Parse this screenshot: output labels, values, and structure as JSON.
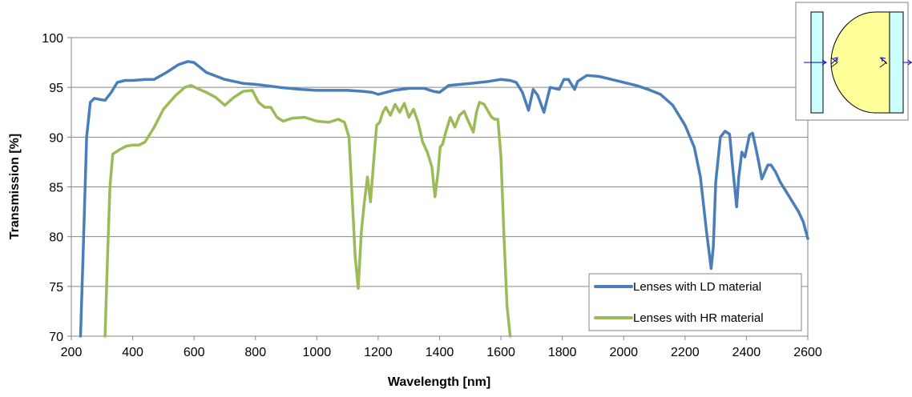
{
  "chart_data": {
    "type": "line",
    "xlabel": "Wavelength [nm]",
    "ylabel": "Transmission [%]",
    "xlim": [
      200,
      2600
    ],
    "ylim": [
      70,
      100
    ],
    "xticks": [
      200,
      400,
      600,
      800,
      1000,
      1200,
      1400,
      1600,
      1800,
      2000,
      2200,
      2400,
      2600
    ],
    "yticks": [
      70,
      75,
      80,
      85,
      90,
      95,
      100
    ],
    "grid": "horizontal",
    "legend_position": "bottom-right",
    "series": [
      {
        "name": "Lenses with LD material",
        "color": "#4a7ebb",
        "x": [
          230,
          238,
          250,
          262,
          275,
          290,
          310,
          330,
          350,
          375,
          400,
          440,
          470,
          510,
          550,
          580,
          600,
          640,
          700,
          760,
          800,
          830,
          880,
          950,
          1000,
          1050,
          1100,
          1150,
          1180,
          1200,
          1250,
          1300,
          1350,
          1380,
          1400,
          1430,
          1500,
          1560,
          1600,
          1630,
          1650,
          1670,
          1690,
          1705,
          1720,
          1740,
          1760,
          1790,
          1805,
          1820,
          1840,
          1850,
          1880,
          1920,
          1960,
          2000,
          2040,
          2080,
          2120,
          2160,
          2200,
          2230,
          2250,
          2270,
          2285,
          2292,
          2300,
          2315,
          2330,
          2345,
          2355,
          2368,
          2375,
          2385,
          2395,
          2410,
          2420,
          2430,
          2440,
          2450,
          2460,
          2470,
          2480,
          2495,
          2510,
          2530,
          2550,
          2570,
          2585,
          2600
        ],
        "y": [
          70,
          78,
          90,
          93.5,
          93.9,
          93.8,
          93.7,
          94.5,
          95.5,
          95.7,
          95.7,
          95.8,
          95.8,
          96.5,
          97.3,
          97.6,
          97.5,
          96.5,
          95.8,
          95.4,
          95.3,
          95.2,
          95.0,
          94.8,
          94.7,
          94.7,
          94.7,
          94.6,
          94.5,
          94.3,
          94.7,
          94.9,
          94.9,
          94.6,
          94.5,
          95.2,
          95.4,
          95.6,
          95.8,
          95.7,
          95.5,
          94.5,
          92.7,
          94.8,
          94.2,
          92.5,
          95.0,
          94.8,
          95.8,
          95.8,
          94.8,
          95.6,
          96.2,
          96.1,
          95.8,
          95.5,
          95.2,
          94.8,
          94.3,
          93.2,
          91.2,
          89.0,
          86.0,
          80.5,
          76.8,
          79.0,
          85.5,
          90.0,
          90.6,
          90.3,
          87.0,
          83.0,
          86.0,
          88.5,
          88.0,
          90.2,
          90.4,
          89.0,
          87.5,
          85.8,
          86.5,
          87.2,
          87.2,
          86.5,
          85.5,
          84.5,
          83.5,
          82.5,
          81.5,
          79.8
        ]
      },
      {
        "name": "Lenses with HR material",
        "color": "#9bbb59",
        "x": [
          310,
          318,
          326,
          335,
          345,
          360,
          380,
          400,
          420,
          440,
          470,
          500,
          540,
          570,
          590,
          610,
          640,
          670,
          700,
          730,
          760,
          790,
          810,
          830,
          850,
          870,
          890,
          920,
          960,
          1000,
          1040,
          1070,
          1090,
          1105,
          1115,
          1125,
          1135,
          1145,
          1155,
          1165,
          1175,
          1185,
          1195,
          1205,
          1215,
          1225,
          1240,
          1255,
          1270,
          1285,
          1300,
          1315,
          1330,
          1345,
          1360,
          1375,
          1385,
          1395,
          1402,
          1410,
          1420,
          1435,
          1450,
          1465,
          1480,
          1495,
          1510,
          1520,
          1530,
          1545,
          1560,
          1570,
          1580,
          1590,
          1600,
          1610,
          1620,
          1630
        ],
        "y": [
          70,
          78,
          85,
          88.3,
          88.5,
          88.8,
          89.1,
          89.2,
          89.2,
          89.5,
          91.0,
          92.8,
          94.2,
          95.0,
          95.2,
          94.9,
          94.5,
          94.0,
          93.2,
          94.0,
          94.6,
          94.7,
          93.5,
          93.0,
          93.0,
          92.0,
          91.6,
          91.9,
          92.0,
          91.6,
          91.5,
          91.8,
          91.5,
          90.0,
          84.0,
          78.0,
          74.8,
          80.5,
          83.5,
          86.0,
          83.5,
          87.5,
          91.2,
          91.5,
          92.5,
          93.0,
          92.2,
          93.3,
          92.5,
          93.4,
          92.0,
          92.8,
          91.5,
          89.5,
          88.5,
          87.0,
          84.0,
          86.5,
          89.0,
          89.3,
          90.5,
          92.0,
          91.0,
          92.2,
          92.6,
          91.5,
          90.5,
          92.5,
          93.5,
          93.3,
          92.5,
          92.0,
          91.8,
          91.8,
          88.0,
          80.0,
          73.0,
          70.0
        ]
      }
    ]
  },
  "legend": {
    "items": [
      {
        "label": "Lenses with LD material",
        "color": "#4a7ebb"
      },
      {
        "label": "Lenses with HR material",
        "color": "#9bbb59"
      }
    ]
  },
  "inset": {
    "icon": "lens-diagram-icon",
    "plate_color": "#ccffff",
    "lens_color": "#ffff99",
    "arrow_color": "#0000cc"
  }
}
